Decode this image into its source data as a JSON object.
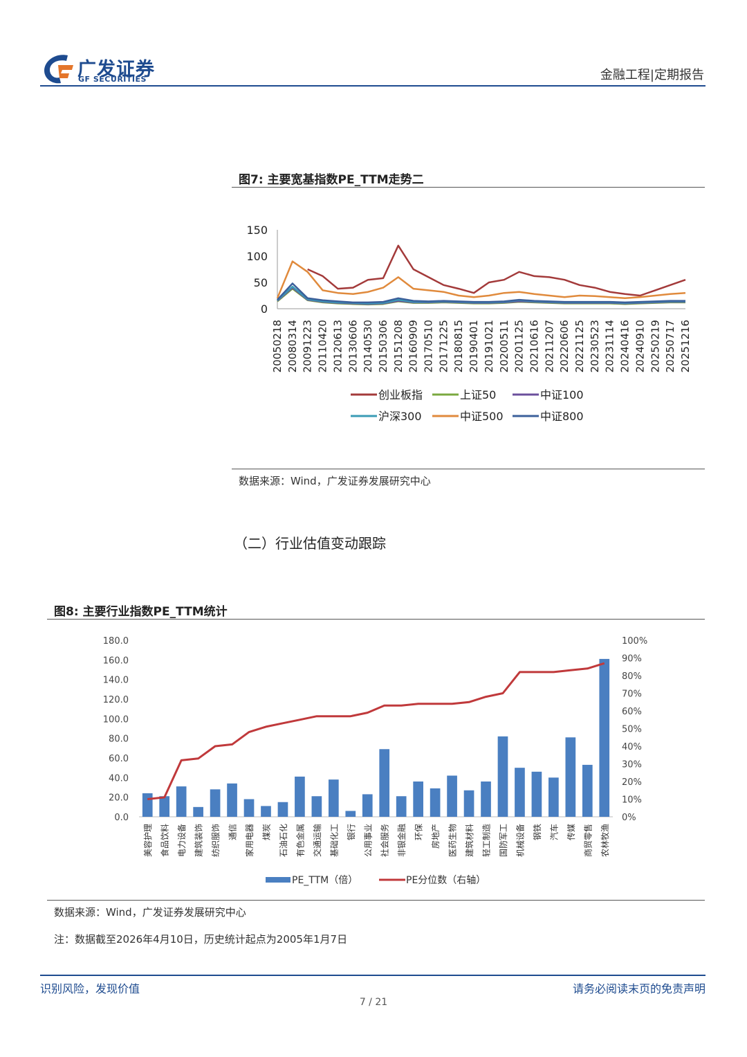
{
  "header": {
    "brand_cn": "广发证券",
    "brand_en": "GF SECURITIES",
    "category": "金融工程|定期报告"
  },
  "figure7": {
    "title": "图7:  主要宽基指数PE_TTM走势二",
    "source": "数据来源：Wind，广发证券发展研究中心"
  },
  "section": {
    "heading": "（二）行业估值变动跟踪"
  },
  "figure8": {
    "title": "图8:  主要行业指数PE_TTM统计",
    "source": "数据来源：Wind，广发证券发展研究中心",
    "note": "注：数据截至2026年4月10日，历史统计起点为2005年1月7日"
  },
  "footer": {
    "left": "识别风险，发现价值",
    "right": "请务必阅读末页的免责声明",
    "page": "7 / 21"
  },
  "colors": {
    "cyb": "#a33a3a",
    "sz50": "#7aa83f",
    "zz100": "#6b4f9c",
    "hs300": "#3a9bb5",
    "zz500": "#e08a3c",
    "zz800": "#3b5f9a",
    "bar": "#4a7fc1",
    "pct_line": "#c0393b"
  },
  "chart_data": [
    {
      "type": "line",
      "title": "主要宽基指数PE_TTM走势二",
      "x": [
        "20050218",
        "20080314",
        "20091223",
        "20110420",
        "20120613",
        "20130606",
        "20140530",
        "20150306",
        "20151208",
        "20160909",
        "20170510",
        "20171225",
        "20180815",
        "20190401",
        "20191021",
        "20200511",
        "20201125",
        "20210616",
        "20211207",
        "20220606",
        "20221125",
        "20230523",
        "20231114",
        "20240416",
        "20240910",
        "20250219",
        "20250717",
        "20251216"
      ],
      "ylim": [
        0,
        150
      ],
      "yticks": [
        "150",
        "100",
        "50",
        "0"
      ],
      "series": [
        {
          "name": "创业板指",
          "values": [
            null,
            null,
            75,
            62,
            38,
            40,
            55,
            58,
            120,
            75,
            60,
            45,
            38,
            30,
            50,
            55,
            70,
            62,
            60,
            55,
            45,
            40,
            32,
            28,
            25,
            35,
            45,
            55
          ]
        },
        {
          "name": "上证50",
          "values": [
            14,
            38,
            16,
            12,
            10,
            9,
            8,
            9,
            14,
            11,
            11,
            12,
            11,
            10,
            10,
            11,
            13,
            12,
            11,
            10,
            10,
            10,
            10,
            9,
            10,
            11,
            12,
            12
          ]
        },
        {
          "name": "中证100",
          "values": [
            15,
            40,
            17,
            13,
            11,
            10,
            9,
            10,
            15,
            12,
            12,
            13,
            12,
            11,
            11,
            12,
            14,
            13,
            12,
            11,
            11,
            11,
            11,
            10,
            11,
            12,
            13,
            13
          ]
        },
        {
          "name": "沪深300",
          "values": [
            16,
            42,
            18,
            14,
            12,
            11,
            10,
            11,
            17,
            13,
            13,
            14,
            13,
            12,
            12,
            13,
            16,
            14,
            13,
            12,
            12,
            12,
            12,
            11,
            12,
            13,
            14,
            14
          ]
        },
        {
          "name": "中证500",
          "values": [
            20,
            90,
            70,
            35,
            30,
            28,
            32,
            40,
            60,
            38,
            35,
            32,
            25,
            22,
            25,
            30,
            32,
            28,
            25,
            22,
            25,
            24,
            22,
            20,
            22,
            25,
            28,
            30
          ]
        },
        {
          "name": "中证800",
          "values": [
            17,
            48,
            20,
            16,
            14,
            12,
            12,
            13,
            20,
            15,
            14,
            15,
            14,
            13,
            13,
            14,
            17,
            15,
            14,
            13,
            13,
            13,
            13,
            12,
            13,
            14,
            15,
            15
          ]
        }
      ]
    },
    {
      "type": "bar",
      "title": "主要行业指数PE_TTM统计",
      "categories": [
        "美容护理",
        "食品饮料",
        "电力设备",
        "建筑装饰",
        "纺织服饰",
        "通信",
        "家用电器",
        "煤炭",
        "石油石化",
        "有色金属",
        "交通运输",
        "基础化工",
        "银行",
        "公用事业",
        "社会服务",
        "非银金融",
        "环保",
        "房地产",
        "医药生物",
        "建筑材料",
        "轻工制造",
        "国防军工",
        "机械设备",
        "钢铁",
        "汽车",
        "传媒",
        "商贸零售",
        "农林牧渔"
      ],
      "series": [
        {
          "name": "PE_TTM（倍）",
          "axis": "left",
          "values": [
            24,
            21,
            31,
            10,
            28,
            34,
            18,
            11,
            15,
            41,
            21,
            38,
            6,
            23,
            69,
            21,
            36,
            29,
            42,
            27,
            36,
            82,
            50,
            46,
            40,
            81,
            53,
            161
          ]
        },
        {
          "name": "PE分位数（右轴）",
          "axis": "right",
          "values": [
            10,
            11,
            32,
            33,
            40,
            41,
            48,
            51,
            53,
            55,
            57,
            57,
            57,
            59,
            63,
            63,
            64,
            64,
            64,
            65,
            68,
            70,
            82,
            82,
            82,
            83,
            84,
            87
          ]
        }
      ],
      "ylim": [
        0,
        180
      ],
      "y2lim": [
        0,
        100
      ],
      "yticks": [
        "180.0",
        "160.0",
        "140.0",
        "120.0",
        "100.0",
        "80.0",
        "60.0",
        "40.0",
        "20.0",
        "0.0"
      ],
      "y2ticks": [
        "100%",
        "90%",
        "80%",
        "70%",
        "60%",
        "50%",
        "40%",
        "30%",
        "20%",
        "10%",
        "0%"
      ]
    }
  ]
}
